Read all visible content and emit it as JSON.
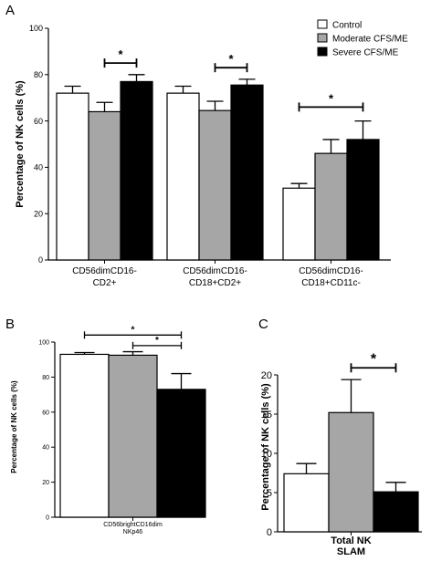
{
  "chart_data": [
    {
      "panel": "A",
      "type": "bar",
      "ylabel": "Percentage of NK cells (%)",
      "ylim": [
        0,
        100
      ],
      "yticks": [
        "0",
        "20",
        "40",
        "60",
        "80",
        "100"
      ],
      "categories": [
        [
          "CD56dimCD16-",
          "CD2+"
        ],
        [
          "CD56dimCD16-",
          "CD18+CD2+"
        ],
        [
          "CD56dimCD16-",
          "CD18+CD11c-"
        ]
      ],
      "legend": {
        "position": "top-right"
      },
      "series": [
        {
          "name": "Control",
          "color": "#ffffff",
          "values": [
            72,
            72,
            31
          ],
          "errors": [
            3,
            3,
            2
          ]
        },
        {
          "name": "Moderate  CFS/ME",
          "color": "#a6a6a6",
          "values": [
            64,
            64.5,
            46
          ],
          "errors": [
            4,
            4,
            6
          ]
        },
        {
          "name": "Severe CFS/ME",
          "color": "#000000",
          "values": [
            77,
            75.5,
            52
          ],
          "errors": [
            3,
            2.5,
            8
          ]
        }
      ],
      "significance": [
        {
          "from": [
            0,
            1
          ],
          "to": [
            0,
            2
          ],
          "y": 85,
          "label": "*"
        },
        {
          "from": [
            1,
            1
          ],
          "to": [
            1,
            2
          ],
          "y": 83,
          "label": "*"
        },
        {
          "from": [
            2,
            0
          ],
          "to": [
            2,
            2
          ],
          "y": 66,
          "label": "*"
        }
      ]
    },
    {
      "panel": "B",
      "type": "bar",
      "ylabel": "Percentage of NK cells (%)",
      "ylim": [
        0,
        100
      ],
      "yticks": [
        "0",
        "20",
        "40",
        "60",
        "80",
        "100"
      ],
      "categories": [
        [
          "CD56brightCD16dim",
          "NKp46"
        ]
      ],
      "series": [
        {
          "name": "Control",
          "color": "#ffffff",
          "values": [
            93
          ],
          "errors": [
            1
          ]
        },
        {
          "name": "Moderate  CFS/ME",
          "color": "#a6a6a6",
          "values": [
            92.5
          ],
          "errors": [
            2
          ]
        },
        {
          "name": "Severe CFS/ME",
          "color": "#000000",
          "values": [
            73
          ],
          "errors": [
            9
          ]
        }
      ],
      "significance": [
        {
          "from": [
            0,
            0
          ],
          "to": [
            0,
            2
          ],
          "y": 104,
          "label": "*"
        },
        {
          "from": [
            0,
            1
          ],
          "to": [
            0,
            2
          ],
          "y": 98,
          "label": "*"
        }
      ]
    },
    {
      "panel": "C",
      "type": "bar",
      "ylabel": "Percentage of NK cells (%)",
      "ylim": [
        0,
        20
      ],
      "yticks": [
        "0",
        "5",
        "10",
        "15",
        "20"
      ],
      "categories": [
        [
          "Total NK",
          "SLAM"
        ]
      ],
      "series": [
        {
          "name": "Control",
          "color": "#ffffff",
          "values": [
            7.4
          ],
          "errors": [
            1.3
          ]
        },
        {
          "name": "Moderate  CFS/ME",
          "color": "#a6a6a6",
          "values": [
            15.2
          ],
          "errors": [
            4.2
          ]
        },
        {
          "name": "Severe CFS/ME",
          "color": "#000000",
          "values": [
            5.1
          ],
          "errors": [
            1.2
          ]
        }
      ],
      "significance": [
        {
          "from": [
            0,
            1
          ],
          "to": [
            0,
            2
          ],
          "y": 20.9,
          "label": "*"
        }
      ]
    }
  ]
}
